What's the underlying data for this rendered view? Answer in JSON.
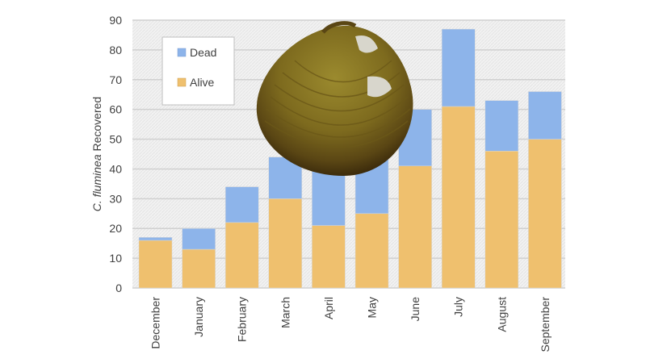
{
  "chart_data": {
    "type": "bar",
    "stacked": true,
    "title": "",
    "xlabel": "",
    "ylabel_italic": "C. fluminea",
    "ylabel_rest": " Recovered",
    "ylim": [
      0,
      90
    ],
    "yticks": [
      0,
      10,
      20,
      30,
      40,
      50,
      60,
      70,
      80,
      90
    ],
    "grid": true,
    "legend_placement": "top-left",
    "categories": [
      "December",
      "January",
      "February",
      "March",
      "April",
      "May",
      "June",
      "July",
      "August",
      "September"
    ],
    "series": [
      {
        "name": "Alive",
        "color": "#EFC06E",
        "values": [
          16,
          13,
          22,
          30,
          21,
          25,
          41,
          61,
          46,
          50
        ]
      },
      {
        "name": "Dead",
        "color": "#8DB4EA",
        "values": [
          1,
          7,
          12,
          14,
          27,
          20,
          19,
          26,
          17,
          16
        ]
      }
    ],
    "overlay_image": "asian-clam-shell-photo"
  }
}
